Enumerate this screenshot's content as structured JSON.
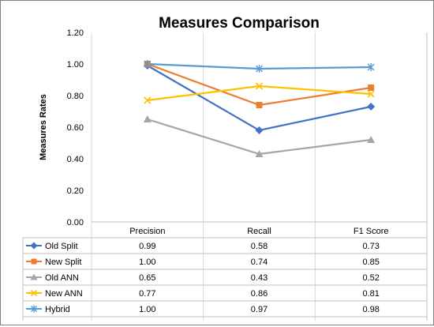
{
  "chart_data": {
    "type": "line",
    "title": "Measures Comparison",
    "ylabel": "Measures Rates",
    "xlabel": "",
    "categories": [
      "Precision",
      "Recall",
      "F1 Score"
    ],
    "ylim": [
      0,
      1.2
    ],
    "yticks": [
      "0.00",
      "0.20",
      "0.40",
      "0.60",
      "0.80",
      "1.00",
      "1.20"
    ],
    "grid": "vertical category lines",
    "legend": "data table below plot",
    "series": [
      {
        "name": "Old Split",
        "values": [
          0.99,
          0.58,
          0.73
        ],
        "labels": [
          "0.99",
          "0.58",
          "0.73"
        ],
        "color": "#4472c4",
        "marker": "diamond"
      },
      {
        "name": "New Split",
        "values": [
          1.0,
          0.74,
          0.85
        ],
        "labels": [
          "1.00",
          "0.74",
          "0.85"
        ],
        "color": "#ed7d31",
        "marker": "square"
      },
      {
        "name": "Old ANN",
        "values": [
          0.65,
          0.43,
          0.52
        ],
        "labels": [
          "0.65",
          "0.43",
          "0.52"
        ],
        "color": "#a5a5a5",
        "marker": "triangle"
      },
      {
        "name": "New ANN",
        "values": [
          0.77,
          0.86,
          0.81
        ],
        "labels": [
          "0.77",
          "0.86",
          "0.81"
        ],
        "color": "#ffc000",
        "marker": "x"
      },
      {
        "name": "Hybrid",
        "values": [
          1.0,
          0.97,
          0.98
        ],
        "labels": [
          "1.00",
          "0.97",
          "0.98"
        ],
        "color": "#5b9bd5",
        "marker": "star"
      }
    ]
  }
}
